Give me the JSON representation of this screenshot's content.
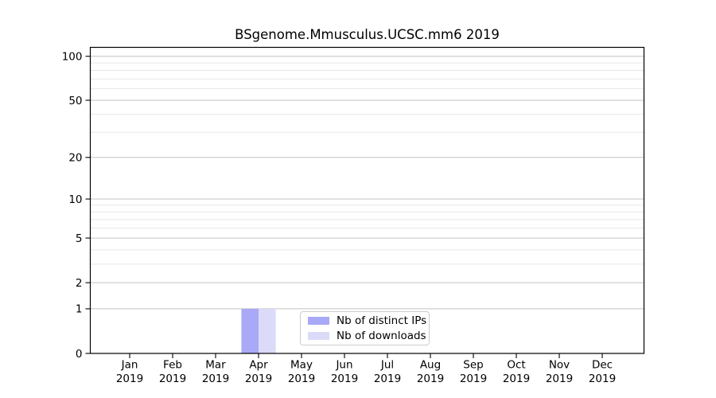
{
  "chart_data": {
    "type": "bar",
    "title": "BSgenome.Mmusculus.UCSC.mm6 2019",
    "categories": [
      "Jan 2019",
      "Feb 2019",
      "Mar 2019",
      "Apr 2019",
      "May 2019",
      "Jun 2019",
      "Jul 2019",
      "Aug 2019",
      "Sep 2019",
      "Oct 2019",
      "Nov 2019",
      "Dec 2019"
    ],
    "series": [
      {
        "name": "Nb of distinct IPs",
        "color": "#a9a9f7",
        "values": [
          0,
          0,
          0,
          1,
          0,
          0,
          0,
          0,
          0,
          0,
          0,
          0
        ]
      },
      {
        "name": "Nb of downloads",
        "color": "#dbdbf9",
        "values": [
          0,
          0,
          0,
          1,
          0,
          0,
          0,
          0,
          0,
          0,
          0,
          0
        ]
      }
    ],
    "xlabel": "",
    "ylabel": "",
    "yscale": "log1p",
    "ylim": [
      0,
      115
    ],
    "yticks": [
      0,
      1,
      2,
      5,
      10,
      20,
      50,
      100
    ],
    "yticks_minor": [
      3,
      4,
      6,
      7,
      8,
      9,
      30,
      40,
      60,
      70,
      80,
      90
    ],
    "grid": true,
    "legend_position": "lower center"
  },
  "colors": {
    "background": "#ffffff",
    "axis": "#000000",
    "text": "#000000",
    "major_grid": "#c3c3c3",
    "minor_grid": "#e7e7e7",
    "legend_border": "#cccccc"
  }
}
